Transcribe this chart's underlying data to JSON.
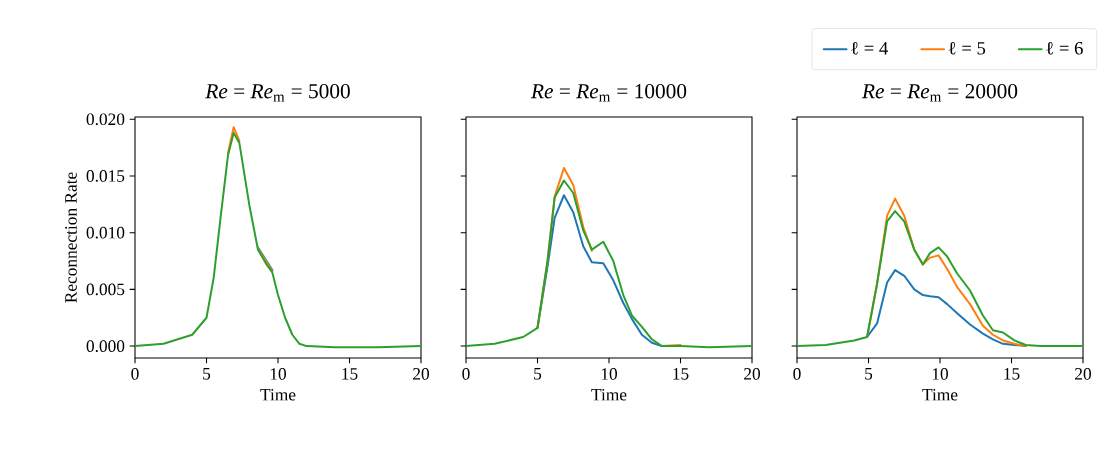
{
  "chart_data": [
    {
      "type": "line",
      "title": "*Re* = *Re*$_{m}$ = 5000",
      "xlabel": "Time",
      "ylabel": "Reconnection Rate",
      "xlim": [
        0,
        20
      ],
      "ylim": [
        -0.00105,
        0.0202
      ],
      "xticks": [
        0,
        5,
        10,
        15,
        20
      ],
      "yticks": [
        {
          "value": 0,
          "label": "0.000"
        },
        {
          "value": 0.005,
          "label": "0.005"
        },
        {
          "value": 0.01,
          "label": "0.010"
        },
        {
          "value": 0.015,
          "label": "0.015"
        },
        {
          "value": 0.02,
          "label": "0.020"
        }
      ],
      "x": [
        0,
        2,
        4,
        5,
        5.5,
        6,
        6.5,
        6.9,
        7.3,
        8,
        8.6,
        9.2,
        9.6,
        10,
        10.5,
        11,
        11.5,
        12,
        14,
        17,
        20
      ],
      "series": [
        {
          "color": "#1f77b4",
          "values": [
            null,
            null,
            null,
            null,
            null,
            null,
            null,
            null,
            null,
            null,
            0.0087,
            0.0075,
            0.0067,
            null,
            null,
            null,
            null,
            null,
            null,
            null,
            null
          ]
        },
        {
          "color": "#ff7f0e",
          "values": [
            null,
            null,
            null,
            null,
            null,
            null,
            0.017,
            0.0193,
            0.0181,
            null,
            0.0086,
            0.0074,
            0.0066,
            null,
            null,
            null,
            null,
            null,
            null,
            null,
            null
          ]
        },
        {
          "color": "#2ca02c",
          "values": [
            0,
            0.0002,
            0.001,
            0.0025,
            0.006,
            0.0115,
            0.0168,
            0.0188,
            0.0179,
            0.0124,
            0.0085,
            0.0072,
            0.0065,
            0.0045,
            0.0025,
            0.001,
            0.0002,
            0,
            -0.0001,
            -0.0001,
            0
          ]
        }
      ]
    },
    {
      "type": "line",
      "title": "*Re* = *Re*$_{m}$ = 10000",
      "xlabel": "Time",
      "tick_labels": "x",
      "xlim": [
        0,
        20
      ],
      "ylim": [
        -0.00105,
        0.0202
      ],
      "xticks": [
        0,
        5,
        10,
        15,
        20
      ],
      "yticks": [
        {
          "value": 0,
          "label": null
        },
        {
          "value": 0.005,
          "label": null
        },
        {
          "value": 0.01,
          "label": null
        },
        {
          "value": 0.015,
          "label": null
        },
        {
          "value": 0.02,
          "label": null
        }
      ],
      "x": [
        0,
        2,
        4,
        5,
        5.7,
        6.2,
        6.85,
        7.5,
        8.2,
        8.8,
        9.6,
        10.3,
        11,
        11.6,
        12.3,
        13,
        13.7,
        15,
        17,
        20
      ],
      "series": [
        {
          "color": "#1f77b4",
          "values": [
            null,
            null,
            null,
            0.0016,
            0.007,
            0.0113,
            0.0133,
            0.0118,
            0.0088,
            0.0074,
            0.0073,
            0.0058,
            0.0038,
            0.0024,
            0.001,
            0.0003,
            0,
            null,
            null,
            null
          ]
        },
        {
          "color": "#ff7f0e",
          "values": [
            null,
            null,
            null,
            0.0016,
            0.0075,
            0.0132,
            0.0157,
            0.0142,
            0.0105,
            0.0084,
            null,
            null,
            null,
            null,
            null,
            null,
            0,
            0.0001,
            null,
            null
          ]
        },
        {
          "color": "#2ca02c",
          "values": [
            0,
            0.0002,
            0.0008,
            0.0016,
            0.0075,
            0.0131,
            0.0146,
            0.0135,
            0.0102,
            0.0085,
            0.0092,
            0.0075,
            0.0045,
            0.0027,
            0.0017,
            0.0006,
            0,
            0,
            -0.0001,
            0
          ]
        }
      ]
    },
    {
      "type": "line",
      "title": "*Re* = *Re*$_{m}$ = 20000",
      "xlabel": "Time",
      "tick_labels": "x",
      "legend": "top right",
      "xlim": [
        0,
        20
      ],
      "ylim": [
        -0.00105,
        0.0202
      ],
      "xticks": [
        0,
        5,
        10,
        15,
        20
      ],
      "yticks": [
        {
          "value": 0,
          "label": null
        },
        {
          "value": 0.005,
          "label": null
        },
        {
          "value": 0.01,
          "label": null
        },
        {
          "value": 0.015,
          "label": null
        },
        {
          "value": 0.02,
          "label": null
        }
      ],
      "x": [
        0,
        2,
        4,
        4.9,
        5.6,
        6.3,
        6.86,
        7.5,
        8.2,
        8.8,
        9.3,
        9.9,
        10.5,
        11.2,
        12.1,
        13,
        13.7,
        14.4,
        15.2,
        16,
        17,
        20
      ],
      "series": [
        {
          "name": "ℓ = 4",
          "color": "#1f77b4",
          "values": [
            null,
            null,
            null,
            0.0008,
            0.002,
            0.0056,
            0.0067,
            0.0062,
            0.005,
            0.0045,
            0.0044,
            0.0043,
            0.0037,
            0.0029,
            0.0019,
            0.0011,
            0.0006,
            0.0002,
            0.0001,
            0,
            null,
            null
          ]
        },
        {
          "name": "ℓ = 5",
          "color": "#ff7f0e",
          "values": [
            null,
            null,
            null,
            0.0008,
            0.0055,
            0.0115,
            0.013,
            0.0115,
            0.0085,
            0.0072,
            0.0078,
            0.008,
            0.0068,
            0.0052,
            0.0037,
            0.0018,
            0.001,
            0.0005,
            0.0002,
            0,
            null,
            null
          ]
        },
        {
          "name": "ℓ = 6",
          "color": "#2ca02c",
          "values": [
            0,
            0.0001,
            0.0005,
            0.0008,
            0.0055,
            0.011,
            0.0119,
            0.011,
            0.0085,
            0.0072,
            0.0082,
            0.0087,
            0.0079,
            0.0064,
            0.0049,
            0.0027,
            0.0014,
            0.0012,
            0.0005,
            0.0001,
            0,
            0
          ]
        }
      ]
    }
  ]
}
